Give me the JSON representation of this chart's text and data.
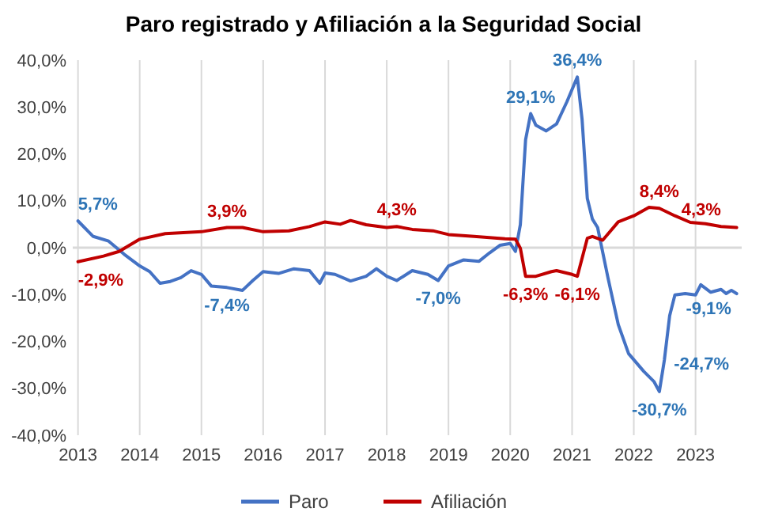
{
  "chart_data": {
    "type": "line",
    "title": "Paro registrado y Afiliación a la Seguridad Social",
    "xlim": [
      "2012-12",
      "2023-10"
    ],
    "xticks": [
      {
        "value": "2013-01",
        "label": "2013"
      },
      {
        "value": "2014-01",
        "label": "2014"
      },
      {
        "value": "2015-01",
        "label": "2015"
      },
      {
        "value": "2016-01",
        "label": "2016"
      },
      {
        "value": "2017-01",
        "label": "2017"
      },
      {
        "value": "2018-01",
        "label": "2018"
      },
      {
        "value": "2019-01",
        "label": "2019"
      },
      {
        "value": "2020-01",
        "label": "2020"
      },
      {
        "value": "2021-01",
        "label": "2021"
      },
      {
        "value": "2022-01",
        "label": "2022"
      },
      {
        "value": "2023-01",
        "label": "2023"
      }
    ],
    "ylim": [
      -40,
      40
    ],
    "yticks": [
      {
        "value": -40,
        "label": "-40,0%"
      },
      {
        "value": -30,
        "label": "-30,0%"
      },
      {
        "value": -20,
        "label": "-20,0%"
      },
      {
        "value": -10,
        "label": "-10,0%"
      },
      {
        "value": 0,
        "label": "0,0%"
      },
      {
        "value": 10,
        "label": "10,0%"
      },
      {
        "value": 20,
        "label": "20,0%"
      },
      {
        "value": 30,
        "label": "30,0%"
      },
      {
        "value": 40,
        "label": "40,0%"
      }
    ],
    "grid": "x",
    "legend": "bottom",
    "ref_lines": [
      {
        "axis": "y",
        "value": 0,
        "label": null,
        "color": "#d9d9d9"
      }
    ],
    "series": [
      {
        "name": "Paro",
        "color": "#4472c4",
        "x": [
          "2013-01",
          "2013-04",
          "2013-07",
          "2013-10",
          "2014-01",
          "2014-03",
          "2014-05",
          "2014-07",
          "2014-09",
          "2014-11",
          "2015-01",
          "2015-03",
          "2015-06",
          "2015-09",
          "2015-11",
          "2016-01",
          "2016-04",
          "2016-07",
          "2016-10",
          "2016-12",
          "2017-01",
          "2017-03",
          "2017-06",
          "2017-09",
          "2017-11",
          "2018-01",
          "2018-03",
          "2018-06",
          "2018-09",
          "2018-11",
          "2019-01",
          "2019-04",
          "2019-07",
          "2019-09",
          "2019-11",
          "2020-01",
          "2020-02",
          "2020-03",
          "2020-04",
          "2020-05",
          "2020-06",
          "2020-08",
          "2020-10",
          "2020-12",
          "2021-02",
          "2021-03",
          "2021-04",
          "2021-05",
          "2021-06",
          "2021-08",
          "2021-10",
          "2021-12",
          "2022-03",
          "2022-05",
          "2022-06",
          "2022-07",
          "2022-08",
          "2022-09",
          "2022-11",
          "2023-01",
          "2023-02",
          "2023-04",
          "2023-06",
          "2023-07",
          "2023-08",
          "2023-09"
        ],
        "values": [
          5.7,
          2.4,
          1.4,
          -1.4,
          -3.9,
          -5.1,
          -7.6,
          -7.2,
          -6.4,
          -4.9,
          -5.7,
          -8.2,
          -8.5,
          -9.1,
          -7,
          -5.1,
          -5.5,
          -4.5,
          -4.9,
          -7.6,
          -5.4,
          -5.7,
          -7.1,
          -6.1,
          -4.5,
          -6.1,
          -7,
          -4.9,
          -5.7,
          -7,
          -3.9,
          -2.6,
          -2.9,
          -1.1,
          0.5,
          0.9,
          -0.8,
          4.9,
          23,
          28.6,
          26.1,
          24.9,
          26.4,
          31.1,
          36.4,
          27.4,
          10.5,
          6.1,
          4.3,
          -6.4,
          -16.4,
          -22.6,
          -26.4,
          -28.6,
          -30.7,
          -23.9,
          -14.5,
          -10.1,
          -9.8,
          -10.1,
          -7.9,
          -9.5,
          -8.9,
          -9.8,
          -9.1,
          -9.8
        ]
      },
      {
        "name": "Afiliación",
        "color": "#c00000",
        "x": [
          "2013-01",
          "2013-06",
          "2013-09",
          "2014-01",
          "2014-06",
          "2015-01",
          "2015-06",
          "2015-09",
          "2016-01",
          "2016-06",
          "2016-10",
          "2017-01",
          "2017-04",
          "2017-06",
          "2017-09",
          "2018-01",
          "2018-03",
          "2018-06",
          "2018-10",
          "2019-01",
          "2019-06",
          "2019-12",
          "2020-02",
          "2020-03",
          "2020-04",
          "2020-06",
          "2020-09",
          "2020-10",
          "2021-01",
          "2021-02",
          "2021-04",
          "2021-05",
          "2021-07",
          "2021-10",
          "2022-01",
          "2022-04",
          "2022-06",
          "2022-09",
          "2022-12",
          "2023-03",
          "2023-06",
          "2023-09"
        ],
        "values": [
          -3,
          -1.8,
          -0.8,
          1.8,
          3,
          3.4,
          4.3,
          4.3,
          3.4,
          3.6,
          4.5,
          5.5,
          5,
          5.8,
          4.9,
          4.3,
          4.5,
          3.9,
          3.6,
          2.8,
          2.4,
          1.9,
          1.8,
          -0.1,
          -6.1,
          -6.1,
          -5.1,
          -4.9,
          -5.7,
          -6.1,
          2,
          2.4,
          1.6,
          5.5,
          6.8,
          8.6,
          8.4,
          6.8,
          5.4,
          5.1,
          4.5,
          4.3
        ]
      }
    ],
    "annotations": [
      {
        "text": "5,7%",
        "x": "2013-01",
        "y": 5.7
      },
      {
        "text": "-2,9%",
        "x": "2013-01",
        "y": -3
      },
      {
        "text": "3,9%",
        "x": "2015-06",
        "y": 4.3
      },
      {
        "text": "-7,4%",
        "x": "2015-06",
        "y": -8.5
      },
      {
        "text": "4,3%",
        "x": "2018-03",
        "y": 4.5
      },
      {
        "text": "-7,0%",
        "x": "2018-11",
        "y": -7
      },
      {
        "text": "29,1%",
        "x": "2020-05",
        "y": 28.6
      },
      {
        "text": "36,4%",
        "x": "2021-02",
        "y": 36.4
      },
      {
        "text": "-6,3%",
        "x": "2020-04",
        "y": -6.1
      },
      {
        "text": "-6,1%",
        "x": "2021-02",
        "y": -6.1
      },
      {
        "text": "8,4%",
        "x": "2022-06",
        "y": 8.4
      },
      {
        "text": "-30,7%",
        "x": "2022-06",
        "y": -30.7
      },
      {
        "text": "-24,7%",
        "x": "2022-07",
        "y": -24.7
      },
      {
        "text": "4,3%",
        "x": "2023-06",
        "y": 4.5
      },
      {
        "text": "-9,1%",
        "x": "2023-08",
        "y": -9.1
      }
    ]
  }
}
